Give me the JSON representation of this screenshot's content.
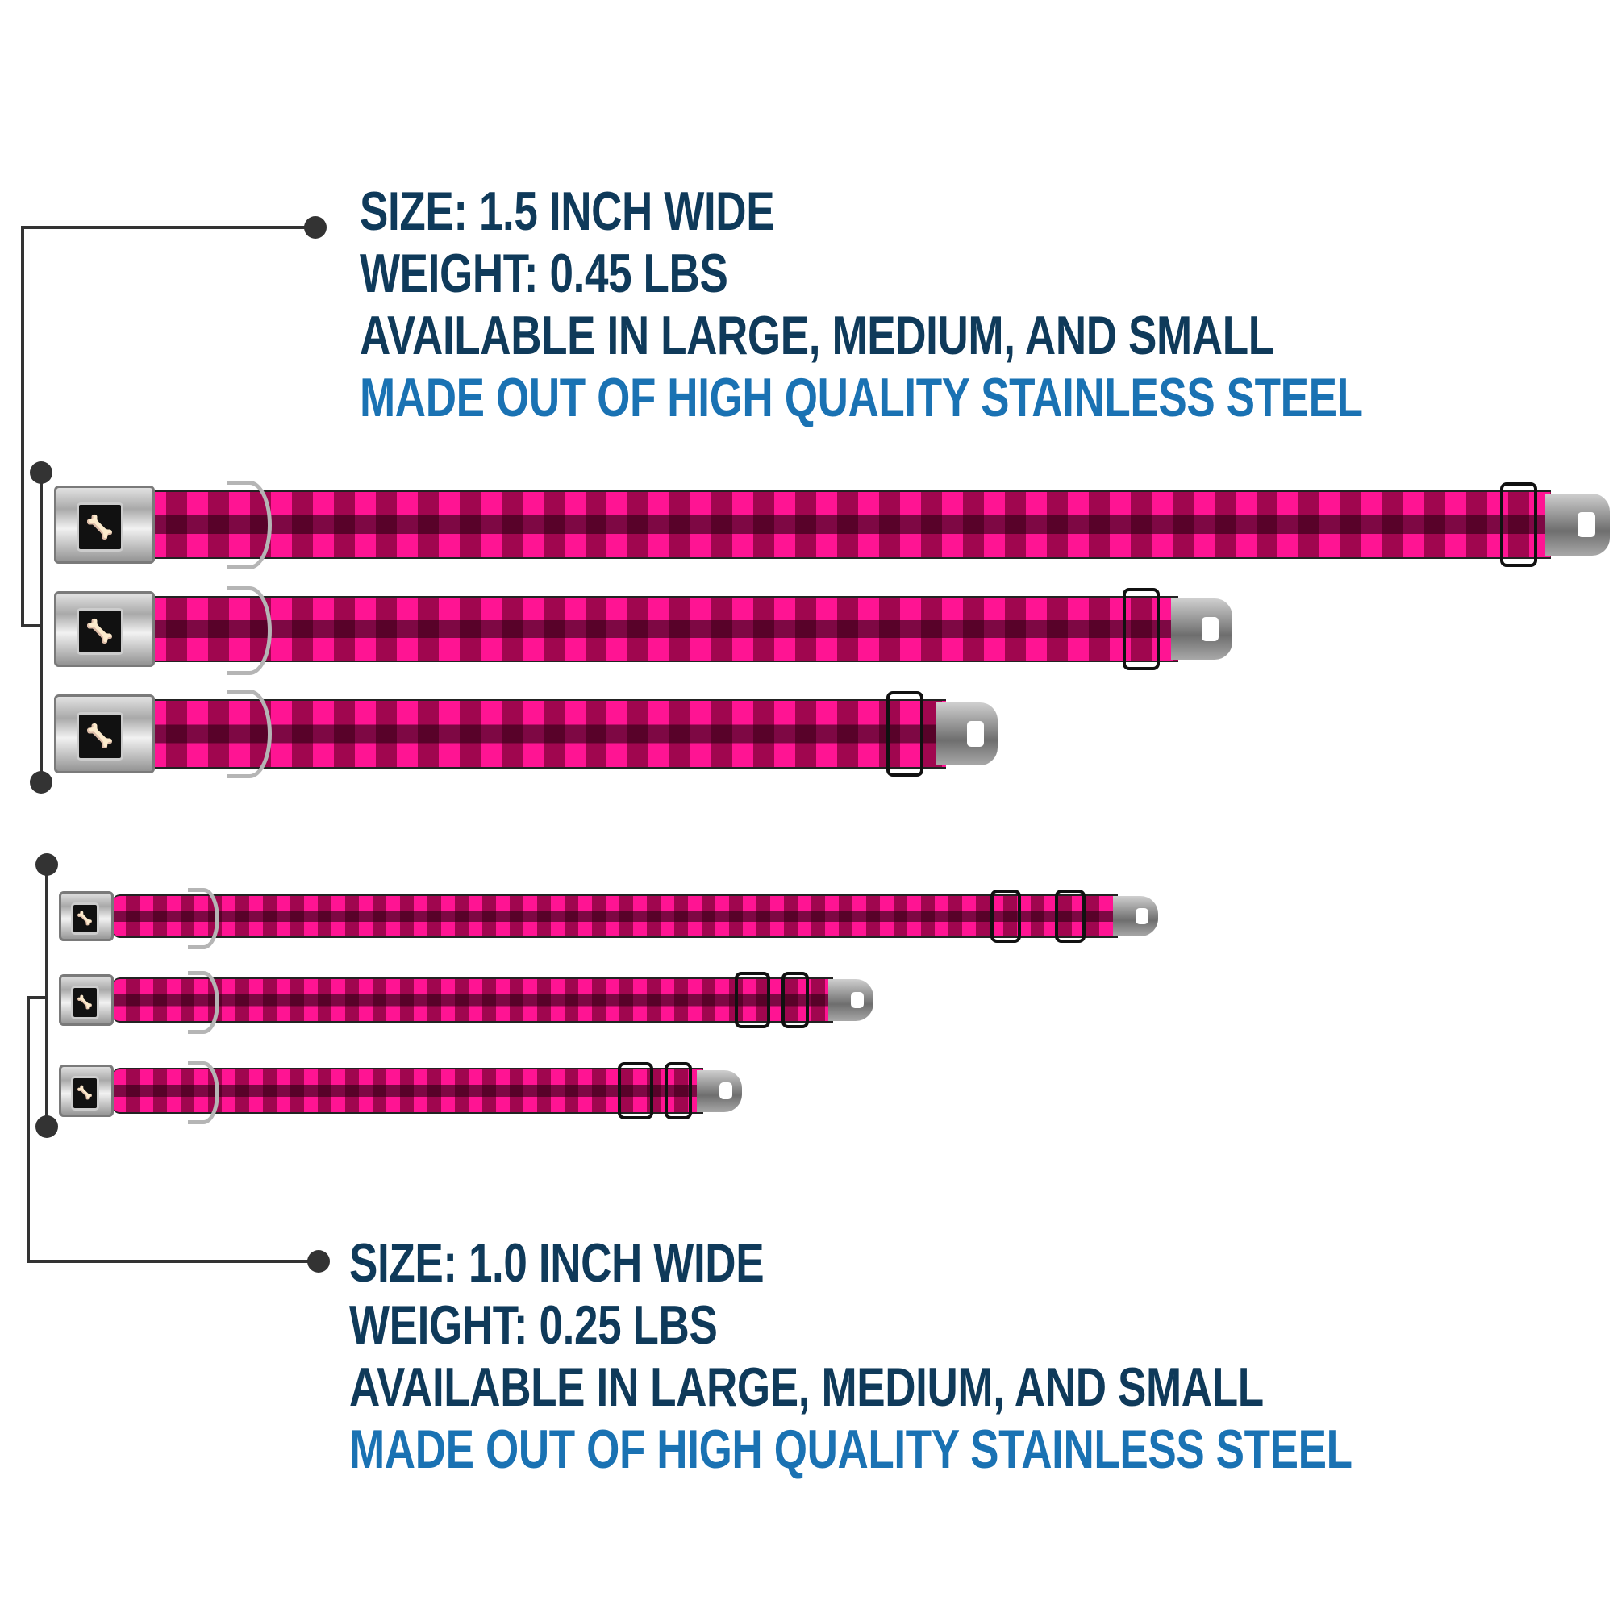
{
  "top_spec": {
    "size": "SIZE: 1.5 INCH WIDE",
    "weight": "WEIGHT: 0.45 LBS",
    "availability": "AVAILABLE IN LARGE, MEDIUM, AND SMALL",
    "material": "MADE OUT OF HIGH QUALITY STAINLESS STEEL"
  },
  "bottom_spec": {
    "size": "SIZE: 1.0 INCH WIDE",
    "weight": "WEIGHT: 0.25 LBS",
    "availability": "AVAILABLE IN LARGE, MEDIUM, AND SMALL",
    "material": "MADE OUT OF HIGH QUALITY STAINLESS STEEL"
  },
  "collars": {
    "wide": [
      "large",
      "medium",
      "small"
    ],
    "narrow": [
      "large",
      "medium",
      "small"
    ],
    "pattern": "pink-black-buffalo-plaid",
    "buckle_icon": "bone-icon"
  },
  "colors": {
    "text_dark": "#0f3a5a",
    "text_accent": "#1a72b3",
    "plaid_pink": "#ff1493",
    "plaid_dark": "#a0064f",
    "connector": "#333333"
  }
}
